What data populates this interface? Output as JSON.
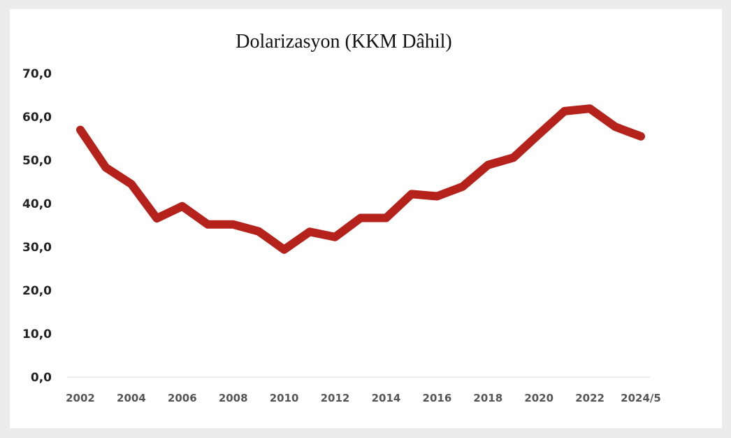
{
  "chart_data": {
    "type": "line",
    "title": "Dolarizasyon (KKM Dâhil)",
    "xlabel": "",
    "ylabel": "",
    "ylim": [
      0,
      70
    ],
    "grid": false,
    "legend": "none",
    "y_ticks": [
      "0,0",
      "10,0",
      "20,0",
      "30,0",
      "40,0",
      "50,0",
      "60,0",
      "70,0"
    ],
    "x_tick_labels": [
      "2002",
      "2004",
      "2006",
      "2008",
      "2010",
      "2012",
      "2014",
      "2016",
      "2018",
      "2020",
      "2022",
      "2024/5"
    ],
    "x": [
      "2002",
      "2003",
      "2004",
      "2005",
      "2006",
      "2007",
      "2008",
      "2009",
      "2010",
      "2011",
      "2012",
      "2013",
      "2014",
      "2015",
      "2016",
      "2017",
      "2018",
      "2019",
      "2020",
      "2021",
      "2022",
      "2023",
      "2024/5"
    ],
    "series": [
      {
        "color": "#b5221c",
        "values": [
          57.0,
          48.3,
          44.5,
          36.6,
          39.4,
          35.2,
          35.2,
          33.6,
          29.4,
          33.5,
          32.3,
          36.7,
          36.7,
          42.2,
          41.7,
          43.9,
          48.9,
          50.6,
          56.0,
          61.3,
          61.9,
          57.7,
          55.5
        ]
      }
    ]
  }
}
